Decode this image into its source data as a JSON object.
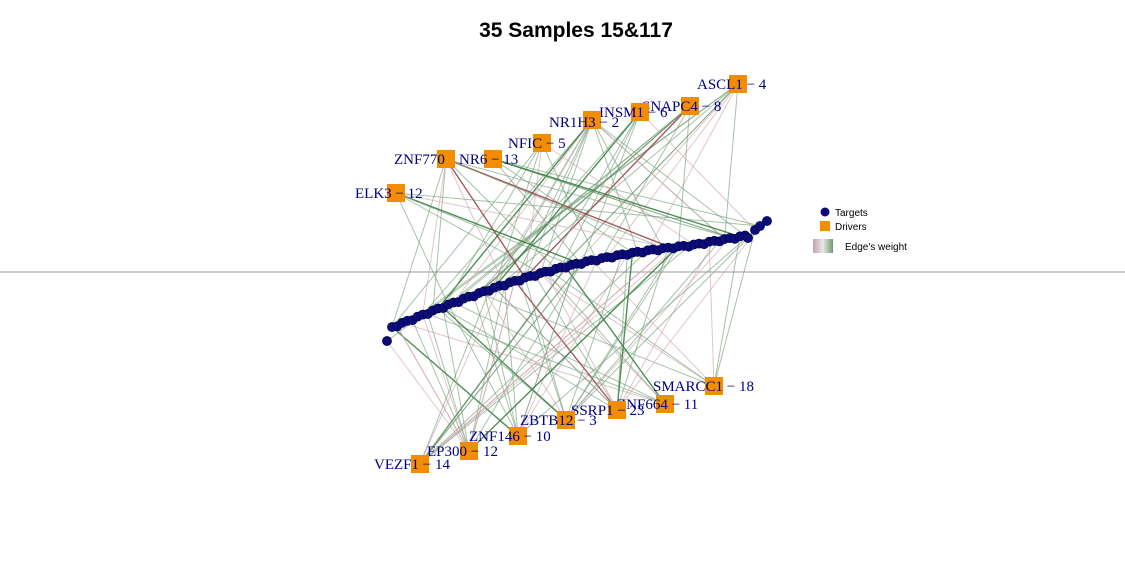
{
  "title": "35 Samples 15&117",
  "legend": {
    "targets_label": "Targets",
    "drivers_label": "Drivers",
    "edge_weight_label": "Edge's weight",
    "target_color": "#0b0b7a",
    "driver_color": "#f28c00",
    "edge_neg_color": "#c9a0a8",
    "edge_pos_color": "#6a9a70"
  },
  "drivers": [
    {
      "id": "ASCL1",
      "label": "ASCL1 − 4"
    },
    {
      "id": "SNAPC4",
      "label": "SNAPC4 − 8"
    },
    {
      "id": "INSM1",
      "label": "INSM1 − 6"
    },
    {
      "id": "NR1H3",
      "label": "NR1H3 − 2"
    },
    {
      "id": "NFIC",
      "label": "NFIC − 5"
    },
    {
      "id": "ZNF770",
      "label": "ZNF770"
    },
    {
      "id": "NR6",
      "label": "NR6 − 13"
    },
    {
      "id": "ELK3",
      "label": "ELK3 − 12"
    },
    {
      "id": "SMARCC1",
      "label": "SMARCC1 − 18"
    },
    {
      "id": "ZNF664",
      "label": "ZNF664 − 11"
    },
    {
      "id": "SSRP1",
      "label": "SSRP1 − 23"
    },
    {
      "id": "ZBTB12",
      "label": "ZBTB12 − 3"
    },
    {
      "id": "ZNF146",
      "label": "ZNF146 − 10"
    },
    {
      "id": "EP300",
      "label": "EP300 − 12"
    },
    {
      "id": "VEZF1",
      "label": "VEZF1 − 14"
    }
  ]
}
